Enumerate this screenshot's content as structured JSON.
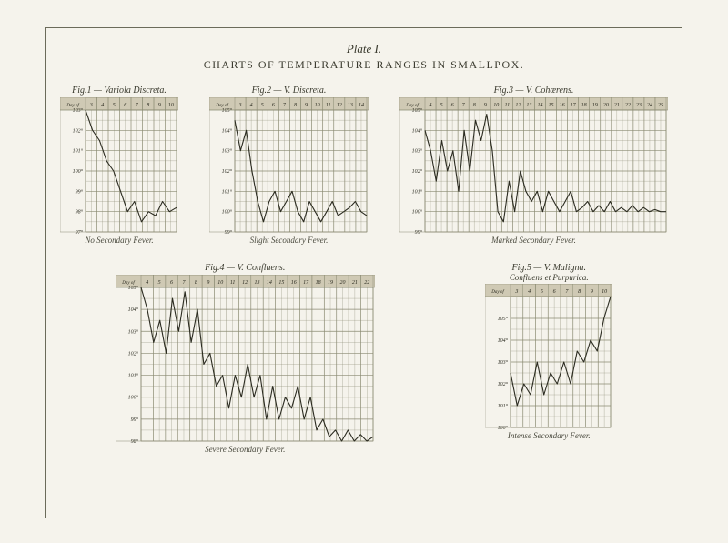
{
  "plate_label": "Plate I.",
  "main_title": "CHARTS OF TEMPERATURE RANGES IN SMALLPOX.",
  "grid_color": "#8a8a72",
  "line_color": "#2b2b20",
  "bg_color": "#f5f3ec",
  "header_bg": "#cfc9b4",
  "header_label": "Day of Disease",
  "charts": {
    "fig1": {
      "title": "Fig.1 — Variola Discreta.",
      "caption": "No Secondary Fever.",
      "days": [
        "3",
        "4",
        "5",
        "6",
        "7",
        "8",
        "9",
        "10"
      ],
      "ylabels": [
        "103°",
        "102°",
        "101°",
        "100°",
        "99°",
        "98°",
        "97°"
      ],
      "ymin": 97,
      "ymax": 103,
      "values": [
        103,
        102,
        101.5,
        100.5,
        100,
        99,
        98,
        98.5,
        97.5,
        98,
        97.8,
        98.5,
        98,
        98.2
      ]
    },
    "fig2": {
      "title": "Fig.2 — V. Discreta.",
      "caption": "Slight Secondary Fever.",
      "days": [
        "3",
        "4",
        "5",
        "6",
        "7",
        "8",
        "9",
        "10",
        "11",
        "12",
        "13",
        "14"
      ],
      "ylabels": [
        "105°",
        "104°",
        "103°",
        "102°",
        "101°",
        "100°",
        "99°"
      ],
      "ymin": 99,
      "ymax": 105,
      "values": [
        104.5,
        103,
        104,
        102,
        100.5,
        99.5,
        100.5,
        101,
        100,
        100.5,
        101,
        100,
        99.5,
        100.5,
        100,
        99.5,
        100,
        100.5,
        99.8,
        100,
        100.2,
        100.5,
        100,
        99.8
      ]
    },
    "fig3": {
      "title": "Fig.3 — V. Cohærens.",
      "caption": "Marked Secondary Fever.",
      "days": [
        "4",
        "5",
        "6",
        "7",
        "8",
        "9",
        "10",
        "11",
        "12",
        "13",
        "14",
        "15",
        "16",
        "17",
        "18",
        "19",
        "20",
        "21",
        "22",
        "23",
        "24",
        "25"
      ],
      "ylabels": [
        "105°",
        "104°",
        "103°",
        "102°",
        "101°",
        "100°",
        "99°"
      ],
      "ymin": 99,
      "ymax": 105,
      "values": [
        104,
        103,
        101.5,
        103.5,
        102,
        103,
        101,
        104,
        102,
        104.5,
        103.5,
        104.8,
        103,
        100,
        99.5,
        101.5,
        100,
        102,
        101,
        100.5,
        101,
        100,
        101,
        100.5,
        100,
        100.5,
        101,
        100,
        100.2,
        100.5,
        100,
        100.3,
        100,
        100.5,
        100,
        100.2,
        100,
        100.3,
        100,
        100.2,
        100,
        100.1,
        100,
        100
      ]
    },
    "fig4": {
      "title": "Fig.4 — V. Confluens.",
      "caption": "Severe Secondary Fever.",
      "days": [
        "4",
        "5",
        "6",
        "7",
        "8",
        "9",
        "10",
        "11",
        "12",
        "13",
        "14",
        "15",
        "16",
        "17",
        "18",
        "19",
        "20",
        "21",
        "22"
      ],
      "ylabels": [
        "105°",
        "104°",
        "103°",
        "102°",
        "101°",
        "100°",
        "99°",
        "98°"
      ],
      "ymin": 98,
      "ymax": 105,
      "values": [
        105,
        104,
        102.5,
        103.5,
        102,
        104.5,
        103,
        104.8,
        102.5,
        104,
        101.5,
        102,
        100.5,
        101,
        99.5,
        101,
        100,
        101.5,
        100,
        101,
        99,
        100.5,
        99,
        100,
        99.5,
        100.5,
        99,
        100,
        98.5,
        99,
        98.2,
        98.5,
        98,
        98.5,
        98,
        98.3,
        98,
        98.2
      ]
    },
    "fig5": {
      "title": "Fig.5 — V. Maligna.",
      "subtitle": "Confluens et Purpurica.",
      "caption": "Intense Secondary Fever.",
      "days": [
        "3",
        "4",
        "5",
        "6",
        "7",
        "8",
        "9",
        "10"
      ],
      "ylabels": [
        "105°",
        "104°",
        "103°",
        "102°",
        "101°",
        "100°"
      ],
      "ymin": 100,
      "ymax": 106,
      "values": [
        102.5,
        101,
        102,
        101.5,
        103,
        101.5,
        102.5,
        102,
        103,
        102,
        103.5,
        103,
        104,
        103.5,
        105,
        106
      ]
    }
  }
}
